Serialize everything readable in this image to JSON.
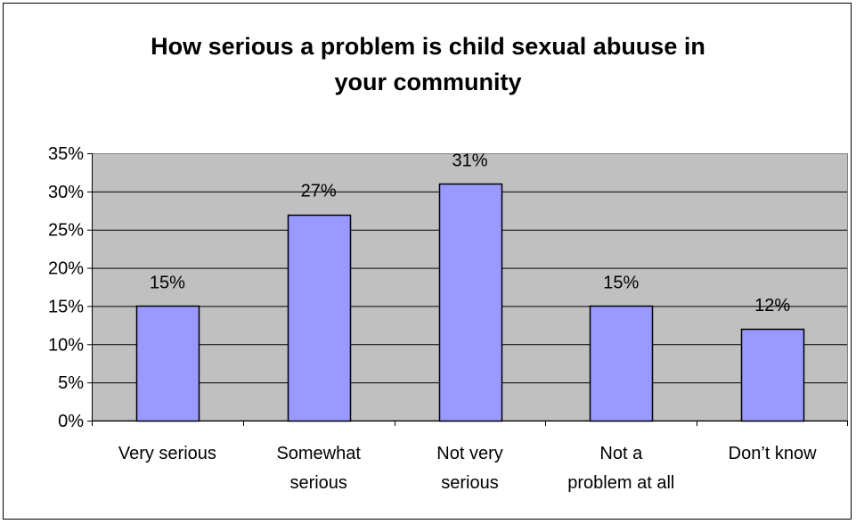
{
  "chart_data": {
    "type": "bar",
    "title_lines": [
      "How serious a problem is child sexual abuuse in",
      "your community"
    ],
    "categories": [
      [
        "Very serious"
      ],
      [
        "Somewhat",
        "serious"
      ],
      [
        "Not very",
        "serious"
      ],
      [
        "Not a",
        "problem at all"
      ],
      [
        "Don’t know"
      ]
    ],
    "values": [
      15,
      27,
      31,
      15,
      12
    ],
    "value_labels": [
      "15%",
      "27%",
      "31%",
      "15%",
      "12%"
    ],
    "y_ticks": [
      "0%",
      "5%",
      "10%",
      "15%",
      "20%",
      "25%",
      "30%",
      "35%"
    ],
    "ylim": [
      0,
      35
    ],
    "y_step": 5,
    "xlabel": "",
    "ylabel": "",
    "grid": true,
    "legend": "none",
    "colors": {
      "bar_fill": "#9999ff",
      "bar_stroke": "#000000",
      "plot_background": "#c0c0c0",
      "gridline": "#000000"
    }
  }
}
